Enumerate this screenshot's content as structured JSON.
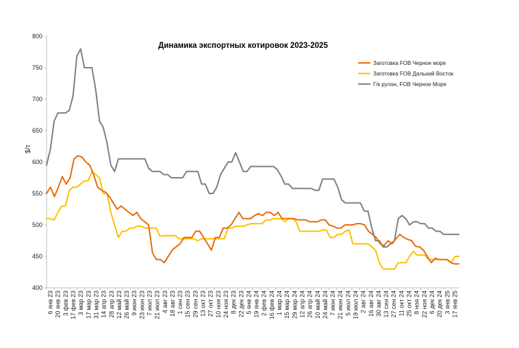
{
  "chart_data": {
    "type": "line",
    "title": "Динамика экспортных котировок 2023-2025",
    "ylabel": "$/т",
    "xlabel": "",
    "ylim": [
      400,
      800
    ],
    "yticks": [
      "400",
      "450",
      "500",
      "550",
      "600",
      "650",
      "700",
      "750",
      "800"
    ],
    "grid": false,
    "legend_position": "top-right",
    "x_tick_labels": [
      "6 янв 23",
      "20 янв 23",
      "3 фев 23",
      "17 фев 23",
      "3 мар 23",
      "17 мар 23",
      "31 мар 23",
      "14 апр 23",
      "28 апр 23",
      "12 май 23",
      "26 май 23",
      "9 июн 23",
      "23 июн 23",
      "7 июл 23",
      "21 июл 23",
      "4 авг 23",
      "18 авг 23",
      "1 сен 23",
      "15 сен 23",
      "29 сен 23",
      "13 окт 23",
      "27 окт 23",
      "10 ноя 23",
      "24 ноя 23",
      "8 дек 23",
      "22 дек 23",
      "5 янв 24",
      "19 янв 24",
      "2 фев 24",
      "16 фев 24",
      "1 мар 24",
      "15 мар 24",
      "29 мар 24",
      "12 апр 24",
      "26 апр 24",
      "10 май 24",
      "24 май 24",
      "7 июн 24",
      "21 июн 24",
      "5 июл 24",
      "19 июл 24",
      "2 авг 24",
      "16 авг 24",
      "30 авг 24",
      "13 сен 24",
      "27 сен 24",
      "11 окт 24",
      "25 окт 24",
      "8 ноя 24",
      "22 ноя 24",
      "6 дек 24",
      "20 дек 24",
      "3 янв 25",
      "17 янв 25"
    ],
    "series": [
      {
        "name": "Заготовка FOB Черное море",
        "color": "#E46C0A",
        "values": [
          550,
          560,
          545,
          560,
          577,
          565,
          575,
          605,
          610,
          608,
          600,
          595,
          580,
          560,
          555,
          552,
          545,
          535,
          525,
          530,
          525,
          520,
          515,
          520,
          510,
          505,
          500,
          455,
          445,
          445,
          440,
          450,
          460,
          465,
          470,
          480,
          480,
          480,
          490,
          490,
          480,
          470,
          460,
          480,
          480,
          495,
          495,
          500,
          510,
          520,
          510,
          510,
          510,
          515,
          518,
          515,
          520,
          520,
          515,
          520,
          510,
          510,
          510,
          510,
          508,
          508,
          508,
          505,
          505,
          505,
          508,
          508,
          500,
          498,
          495,
          495,
          500,
          500,
          500,
          502,
          502,
          500,
          490,
          485,
          480,
          470,
          467,
          475,
          470,
          478,
          485,
          480,
          477,
          475,
          466,
          465,
          460,
          450,
          440,
          447,
          445,
          445,
          445,
          440,
          438,
          438
        ]
      },
      {
        "name": "Заготовка FOB Дальний Восток",
        "color": "#FFC000",
        "values": [
          510,
          510,
          508,
          520,
          530,
          530,
          555,
          560,
          560,
          565,
          570,
          570,
          585,
          580,
          575,
          550,
          550,
          520,
          500,
          480,
          490,
          490,
          495,
          495,
          498,
          498,
          495,
          495,
          495,
          495,
          482,
          483,
          483,
          483,
          483,
          478,
          478,
          478,
          478,
          478,
          475,
          478,
          478,
          478,
          478,
          478,
          478,
          478,
          495,
          495,
          498,
          498,
          498,
          500,
          502,
          502,
          502,
          502,
          508,
          508,
          510,
          510,
          510,
          505,
          510,
          510,
          505,
          490,
          490,
          490,
          490,
          490,
          490,
          492,
          492,
          480,
          480,
          485,
          485,
          490,
          492,
          470,
          470,
          470,
          470,
          470,
          465,
          460,
          440,
          430,
          430,
          430,
          430,
          440,
          440,
          440,
          450,
          458,
          452,
          452,
          452,
          445,
          445,
          445,
          445,
          445,
          445,
          440,
          450,
          450
        ]
      },
      {
        "name": "Г/к рулон, FOB Черное Море",
        "color": "#7F7F7F",
        "values": [
          595,
          620,
          665,
          678,
          678,
          678,
          682,
          705,
          768,
          780,
          750,
          750,
          750,
          715,
          665,
          655,
          630,
          595,
          585,
          605,
          605,
          605,
          605,
          605,
          605,
          605,
          605,
          590,
          585,
          585,
          585,
          580,
          580,
          575,
          575,
          575,
          575,
          585,
          585,
          585,
          585,
          565,
          565,
          550,
          550,
          560,
          580,
          590,
          600,
          600,
          615,
          600,
          585,
          585,
          593,
          593,
          593,
          593,
          593,
          593,
          593,
          588,
          578,
          565,
          565,
          558,
          558,
          558,
          558,
          558,
          558,
          555,
          555,
          573,
          573,
          573,
          573,
          560,
          540,
          535,
          535,
          535,
          535,
          535,
          522,
          522,
          495,
          475,
          475,
          465,
          465,
          470,
          475,
          510,
          515,
          510,
          500,
          505,
          505,
          502,
          502,
          495,
          495,
          490,
          490,
          485,
          485,
          485,
          485,
          485
        ]
      }
    ]
  }
}
